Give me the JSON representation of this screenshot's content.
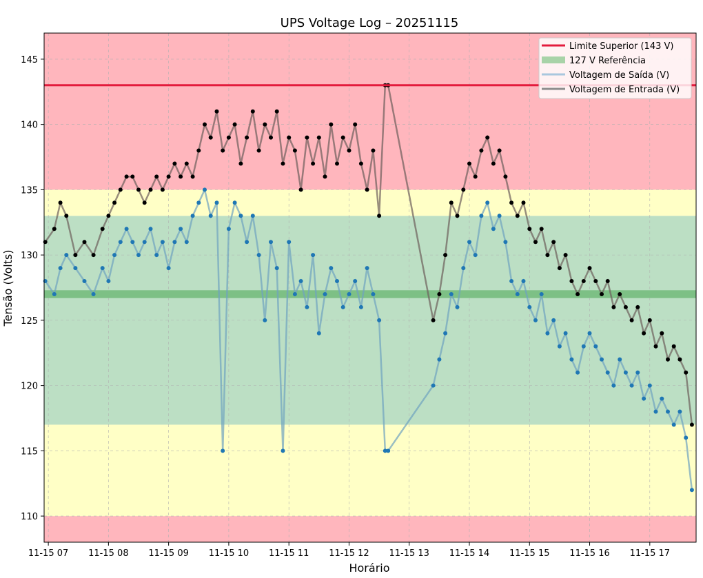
{
  "chart_data": {
    "type": "line",
    "title": "UPS Voltage Log – 20251115",
    "xlabel": "Horário",
    "ylabel": "Tensão (Volts)",
    "xlim": [
      6.93,
      17.77
    ],
    "ylim": [
      108,
      147
    ],
    "x_ticks": [
      {
        "value": 7,
        "label": "11-15 07"
      },
      {
        "value": 8,
        "label": "11-15 08"
      },
      {
        "value": 9,
        "label": "11-15 09"
      },
      {
        "value": 10,
        "label": "11-15 10"
      },
      {
        "value": 11,
        "label": "11-15 11"
      },
      {
        "value": 12,
        "label": "11-15 12"
      },
      {
        "value": 13,
        "label": "11-15 13"
      },
      {
        "value": 14,
        "label": "11-15 14"
      },
      {
        "value": 15,
        "label": "11-15 15"
      },
      {
        "value": 16,
        "label": "11-15 16"
      },
      {
        "value": 17,
        "label": "11-15 17"
      }
    ],
    "y_ticks": [
      {
        "value": 110,
        "label": "110"
      },
      {
        "value": 115,
        "label": "115"
      },
      {
        "value": 120,
        "label": "120"
      },
      {
        "value": 125,
        "label": "125"
      },
      {
        "value": 130,
        "label": "130"
      },
      {
        "value": 135,
        "label": "135"
      },
      {
        "value": 140,
        "label": "140"
      },
      {
        "value": 145,
        "label": "145"
      }
    ],
    "grid": true,
    "bands": [
      {
        "from": 108,
        "to": 110,
        "color": "#ffb6bd"
      },
      {
        "from": 110,
        "to": 117,
        "color": "#ffffc6"
      },
      {
        "from": 117,
        "to": 133,
        "color": "#bcdfc4"
      },
      {
        "from": 133,
        "to": 135,
        "color": "#ffffc6"
      },
      {
        "from": 135,
        "to": 147,
        "color": "#ffb6bd"
      }
    ],
    "reference_line": {
      "value": 127,
      "color": "#7dc085"
    },
    "upper_limit": {
      "value": 143,
      "color": "#e31a3c"
    },
    "legend_position": "top-right",
    "legend": [
      {
        "label": "Limite Superior (143 V)",
        "type": "line",
        "color": "#e31a3c"
      },
      {
        "label": "127 V Referência",
        "type": "patch",
        "color": "#a8d3a8"
      },
      {
        "label": "Voltagem de Saída (V)",
        "type": "line",
        "color": "#a9c7de"
      },
      {
        "label": "Voltagem de Entrada (V)",
        "type": "line",
        "color": "#8c8c8c"
      }
    ],
    "series": [
      {
        "name": "Voltagem de Entrada (V)",
        "color": "#000000",
        "line_color": "#6e5f5c",
        "x": [
          6.95,
          7.1,
          7.2,
          7.3,
          7.45,
          7.6,
          7.75,
          7.9,
          8.0,
          8.1,
          8.2,
          8.3,
          8.4,
          8.5,
          8.6,
          8.7,
          8.8,
          8.9,
          9.0,
          9.1,
          9.2,
          9.3,
          9.4,
          9.5,
          9.6,
          9.7,
          9.8,
          9.9,
          10.0,
          10.1,
          10.2,
          10.3,
          10.4,
          10.5,
          10.6,
          10.7,
          10.8,
          10.9,
          11.0,
          11.1,
          11.2,
          11.3,
          11.4,
          11.5,
          11.6,
          11.7,
          11.8,
          11.9,
          12.0,
          12.1,
          12.2,
          12.3,
          12.4,
          12.5,
          12.6,
          12.65,
          13.4,
          13.5,
          13.6,
          13.7,
          13.8,
          13.9,
          14.0,
          14.1,
          14.2,
          14.3,
          14.4,
          14.5,
          14.6,
          14.7,
          14.8,
          14.9,
          15.0,
          15.1,
          15.2,
          15.3,
          15.4,
          15.5,
          15.6,
          15.7,
          15.8,
          15.9,
          16.0,
          16.1,
          16.2,
          16.3,
          16.4,
          16.5,
          16.6,
          16.7,
          16.8,
          16.9,
          17.0,
          17.1,
          17.2,
          17.3,
          17.4,
          17.5,
          17.6,
          17.7
        ],
        "values": [
          131,
          132,
          134,
          133,
          130,
          131,
          130,
          132,
          133,
          134,
          135,
          136,
          136,
          135,
          134,
          135,
          136,
          135,
          136,
          137,
          136,
          137,
          136,
          138,
          140,
          139,
          141,
          138,
          139,
          140,
          137,
          139,
          141,
          138,
          140,
          139,
          141,
          137,
          139,
          138,
          135,
          139,
          137,
          139,
          136,
          140,
          137,
          139,
          138,
          140,
          137,
          135,
          138,
          133,
          143,
          143,
          125,
          127,
          130,
          134,
          133,
          135,
          137,
          136,
          138,
          139,
          137,
          138,
          136,
          134,
          133,
          134,
          132,
          131,
          132,
          130,
          131,
          129,
          130,
          128,
          127,
          128,
          129,
          128,
          127,
          128,
          126,
          127,
          126,
          125,
          126,
          124,
          125,
          123,
          124,
          122,
          123,
          122,
          121,
          117
        ]
      },
      {
        "name": "Voltagem de Saída (V)",
        "color": "#1f77b4",
        "line_color": "#6fa2c0",
        "x": [
          6.95,
          7.1,
          7.2,
          7.3,
          7.45,
          7.6,
          7.75,
          7.9,
          8.0,
          8.1,
          8.2,
          8.3,
          8.4,
          8.5,
          8.6,
          8.7,
          8.8,
          8.9,
          9.0,
          9.1,
          9.2,
          9.3,
          9.4,
          9.5,
          9.6,
          9.7,
          9.8,
          9.9,
          10.0,
          10.1,
          10.2,
          10.3,
          10.4,
          10.5,
          10.6,
          10.7,
          10.8,
          10.9,
          11.0,
          11.1,
          11.2,
          11.3,
          11.4,
          11.5,
          11.6,
          11.7,
          11.8,
          11.9,
          12.0,
          12.1,
          12.2,
          12.3,
          12.4,
          12.5,
          12.6,
          12.65,
          13.4,
          13.5,
          13.6,
          13.7,
          13.8,
          13.9,
          14.0,
          14.1,
          14.2,
          14.3,
          14.4,
          14.5,
          14.6,
          14.7,
          14.8,
          14.9,
          15.0,
          15.1,
          15.2,
          15.3,
          15.4,
          15.5,
          15.6,
          15.7,
          15.8,
          15.9,
          16.0,
          16.1,
          16.2,
          16.3,
          16.4,
          16.5,
          16.6,
          16.7,
          16.8,
          16.9,
          17.0,
          17.1,
          17.2,
          17.3,
          17.4,
          17.5,
          17.6,
          17.7
        ],
        "values": [
          128,
          127,
          129,
          130,
          129,
          128,
          127,
          129,
          128,
          130,
          131,
          132,
          131,
          130,
          131,
          132,
          130,
          131,
          129,
          131,
          132,
          131,
          133,
          134,
          135,
          133,
          134,
          115,
          132,
          134,
          133,
          131,
          133,
          130,
          125,
          131,
          129,
          115,
          131,
          127,
          128,
          126,
          130,
          124,
          127,
          129,
          128,
          126,
          127,
          128,
          126,
          129,
          127,
          125,
          115,
          115,
          120,
          122,
          124,
          127,
          126,
          129,
          131,
          130,
          133,
          134,
          132,
          133,
          131,
          128,
          127,
          128,
          126,
          125,
          127,
          124,
          125,
          123,
          124,
          122,
          121,
          123,
          124,
          123,
          122,
          121,
          120,
          122,
          121,
          120,
          121,
          119,
          120,
          118,
          119,
          118,
          117,
          118,
          116,
          112
        ]
      }
    ]
  }
}
